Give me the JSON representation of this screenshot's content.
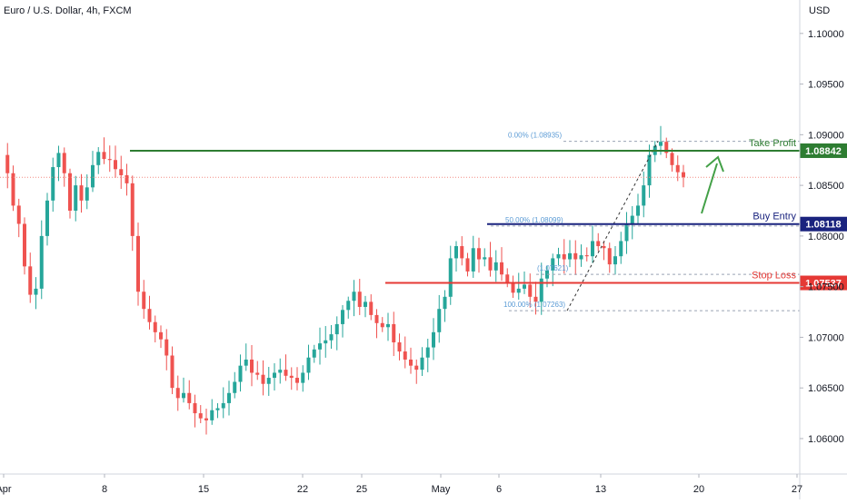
{
  "header": {
    "title": "Euro / U.S. Dollar, 4h, FXCM",
    "currency": "USD"
  },
  "colors": {
    "up": "#26a69a",
    "down": "#ef5350",
    "take_profit": "#2e7d32",
    "buy_entry": "#1a237e",
    "stop_loss": "#e53935",
    "fib": "#5b9bd5",
    "arrow": "#43a047",
    "current": "#f28b82"
  },
  "chart_data": {
    "type": "candlestick",
    "title": "Euro / U.S. Dollar, 4h, FXCM",
    "ylim": [
      1.0565,
      1.1033
    ],
    "y_ticks": [
      "1.10000",
      "1.09500",
      "1.09000",
      "1.08500",
      "1.08000",
      "1.07500",
      "1.07000",
      "1.06500",
      "1.06000"
    ],
    "x_ticks": [
      "Apr",
      "8",
      "15",
      "22",
      "25",
      "May",
      "6",
      "13",
      "20",
      "27"
    ],
    "current_price": 1.0858,
    "levels": [
      {
        "id": "take_profit",
        "label": "Take Profit",
        "badge": "1.08842",
        "value": 1.08842
      },
      {
        "id": "buy_entry",
        "label": "Buy Entry",
        "badge": "1.08118",
        "value": 1.08118
      },
      {
        "id": "stop_loss",
        "label": "Stop Loss",
        "badge": "1.07537",
        "value": 1.07537
      }
    ],
    "fib_levels": [
      {
        "label": "0.00% (1.08935)",
        "value": 1.08935
      },
      {
        "label": "50.00% (1.08099)",
        "value": 1.08099
      },
      {
        "label": "(1.07621)",
        "value": 1.07621
      },
      {
        "label": "100.00% (1.07263)",
        "value": 1.07263
      }
    ],
    "path": [
      1.088,
      1.0862,
      1.083,
      1.0812,
      1.077,
      1.0742,
      1.0748,
      1.08,
      1.0835,
      1.0868,
      1.0882,
      1.0862,
      1.0825,
      1.085,
      1.0835,
      1.0848,
      1.087,
      1.0883,
      1.0876,
      1.0875,
      1.0866,
      1.086,
      1.0852,
      1.08,
      1.0745,
      1.0728,
      1.0715,
      1.0705,
      1.0698,
      1.0682,
      1.065,
      1.064,
      1.0645,
      1.0635,
      1.0625,
      1.062,
      1.0618,
      1.0628,
      1.063,
      1.0635,
      1.0645,
      1.0656,
      1.0672,
      1.0678,
      1.0665,
      1.0663,
      1.0654,
      1.066,
      1.0665,
      1.0668,
      1.0662,
      1.066,
      1.0655,
      1.0665,
      1.068,
      1.0688,
      1.0694,
      1.0697,
      1.0703,
      1.0713,
      1.0727,
      1.0736,
      1.0745,
      1.073,
      1.0735,
      1.0722,
      1.0714,
      1.071,
      1.0713,
      1.0695,
      1.0686,
      1.0678,
      1.0672,
      1.0668,
      1.068,
      1.069,
      1.0705,
      1.0728,
      1.074,
      1.0778,
      1.079,
      1.0778,
      1.0765,
      1.0788,
      1.0777,
      1.0779,
      1.0766,
      1.0774,
      1.0762,
      1.0754,
      1.0744,
      1.0748,
      1.0752,
      1.074,
      1.0735,
      1.0758,
      1.0766,
      1.0778,
      1.0782,
      1.0777,
      1.0783,
      1.0777,
      1.0781,
      1.078,
      1.0795,
      1.079,
      1.0788,
      1.0772,
      1.078,
      1.0795,
      1.0812,
      1.082,
      1.083,
      1.085,
      1.088,
      1.0889,
      1.0893,
      1.0882,
      1.087,
      1.0863,
      1.0858
    ],
    "visible_range": {
      "start": "Apr 2024",
      "end": "May 27 2024"
    }
  },
  "annotations": {
    "arrow": "green upward arrow from Buy Entry toward Take Profit"
  }
}
